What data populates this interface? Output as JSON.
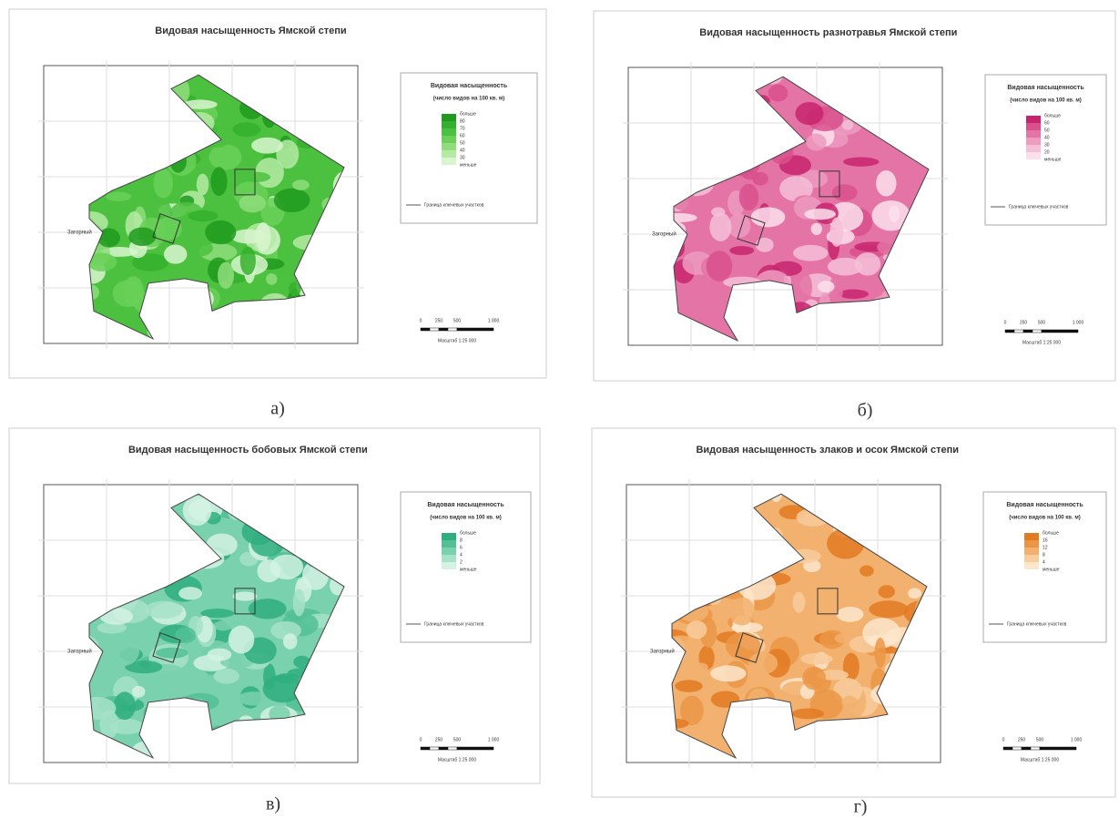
{
  "panels": [
    {
      "label": "а)",
      "title": "Видовая насыщенность Ямской степи",
      "legend": {
        "title": "Видовая насыщенность",
        "subtitle": "(число видов на 100 кв. м)",
        "classes": [
          "больше",
          "80",
          "70",
          "60",
          "50",
          "40",
          "30",
          "меньше"
        ],
        "colors": [
          "#1f9a1f",
          "#35b02e",
          "#4cc13f",
          "#6ad058",
          "#8fdd7c",
          "#b5eaa5",
          "#d8f5cf"
        ]
      },
      "boundary": "Граница ключевых участков",
      "place": "Загорный",
      "scale": {
        "ticks": [
          "0",
          "250",
          "500",
          "1 000"
        ],
        "text": "Масштаб 1:25 000"
      }
    },
    {
      "label": "б)",
      "title": "Видовая насыщенность разнотравья Ямской степи",
      "legend": {
        "title": "Видовая насыщенность",
        "subtitle": "(число видов на 100 кв. м)",
        "classes": [
          "больше",
          "60",
          "50",
          "40",
          "30",
          "20",
          "меньше"
        ],
        "colors": [
          "#c8246e",
          "#d9508c",
          "#e474a5",
          "#ed9bbf",
          "#f5c0d7",
          "#fbe0ec"
        ]
      },
      "boundary": "Граница ключевых участков",
      "place": "Загорный",
      "scale": {
        "ticks": [
          "0",
          "250",
          "500",
          "1 000"
        ],
        "text": "Масштаб 1:25 000"
      }
    },
    {
      "label": "в)",
      "title": "Видовая насыщенность бобовых Ямской степи",
      "legend": {
        "title": "Видовая насыщенность",
        "subtitle": "(число видов на 100 кв. м)",
        "classes": [
          "больше",
          "8",
          "6",
          "4",
          "2",
          "меньше"
        ],
        "colors": [
          "#2fae80",
          "#52c095",
          "#7ad1ad",
          "#a6e2c8",
          "#d3f2e4"
        ]
      },
      "boundary": "Граница ключевых участков",
      "place": "Загорный",
      "scale": {
        "ticks": [
          "0",
          "250",
          "500",
          "1 000"
        ],
        "text": "Масштаб 1:25 000"
      }
    },
    {
      "label": "г)",
      "title": "Видовая насыщенность злаков и осок Ямской степи",
      "legend": {
        "title": "Видовая насыщенность",
        "subtitle": "(число видов на 100 кв. м)",
        "classes": [
          "больше",
          "16",
          "12",
          "8",
          "4",
          "меньше"
        ],
        "colors": [
          "#e27a22",
          "#eb9646",
          "#f2b16f",
          "#f8cd9d",
          "#fde6cc"
        ]
      },
      "boundary": "Граница ключевых участков",
      "place": "Загорный",
      "scale": {
        "ticks": [
          "0",
          "250",
          "500",
          "1 000"
        ],
        "text": "Масштаб 1:25 000"
      }
    }
  ]
}
